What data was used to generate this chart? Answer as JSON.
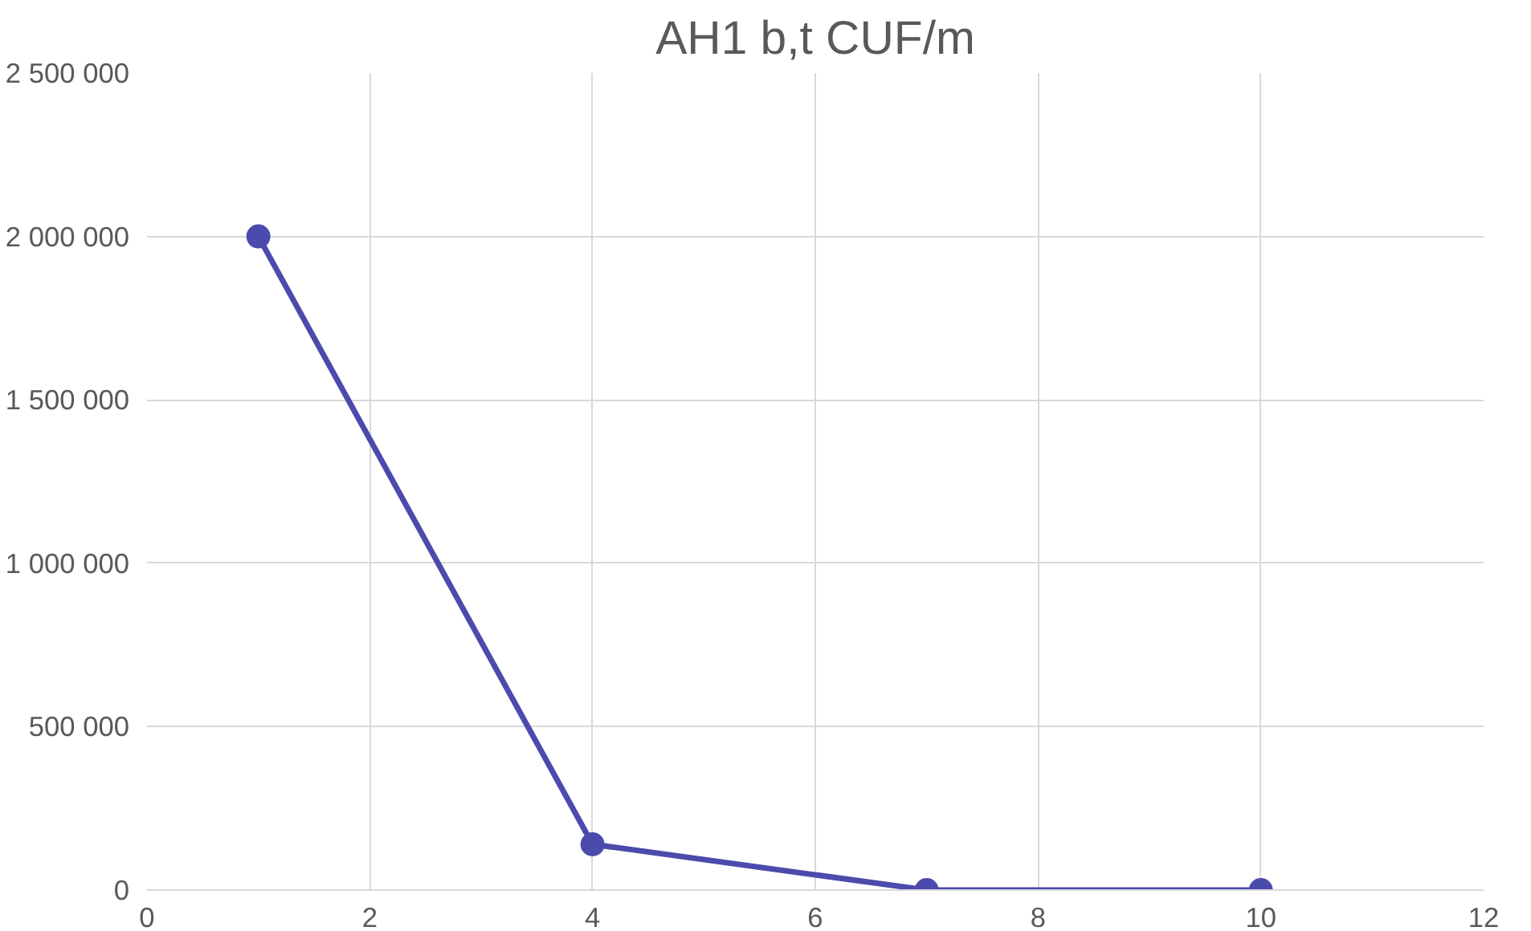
{
  "chart_data": {
    "type": "line",
    "title": "AH1 b,t CUF/m",
    "x": [
      1,
      4,
      7,
      10
    ],
    "series": [
      {
        "color": "#4b4bad",
        "values": [
          2000000,
          140000,
          0,
          0
        ]
      }
    ],
    "xlim": [
      0,
      12
    ],
    "xticks": [
      0,
      2,
      4,
      6,
      8,
      10,
      12
    ],
    "ylim": [
      0,
      2500000
    ],
    "yticks": [
      {
        "value": 0,
        "label": "0"
      },
      {
        "value": 500000,
        "label": "500 000"
      },
      {
        "value": 1000000,
        "label": "1 000 000"
      },
      {
        "value": 1500000,
        "label": "1 500 000"
      },
      {
        "value": 2000000,
        "label": "2 000 000"
      },
      {
        "value": 2500000,
        "label": "2 500 000"
      }
    ],
    "grid": true,
    "marker": "circle",
    "line_style": "solid"
  }
}
